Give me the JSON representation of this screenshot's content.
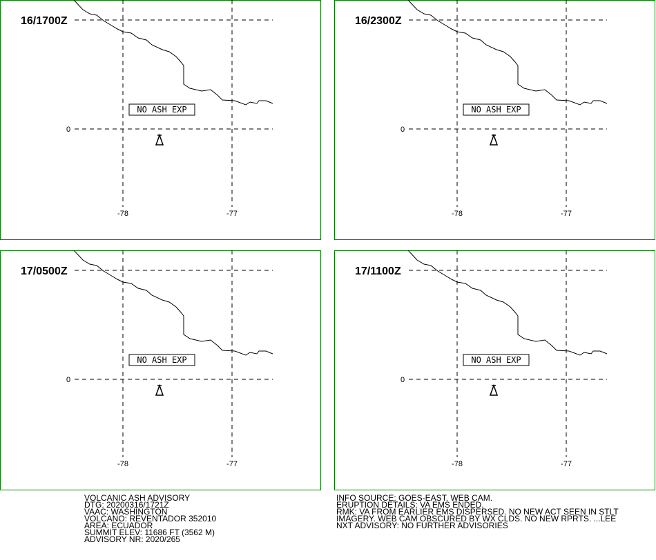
{
  "panels": [
    {
      "time": "16/1700Z",
      "status": "NO ASH EXP",
      "lat_label": "0",
      "lon_labels": [
        "-78",
        "-77"
      ]
    },
    {
      "time": "16/2300Z",
      "status": "NO ASH EXP",
      "lat_label": "0",
      "lon_labels": [
        "-78",
        "-77"
      ]
    },
    {
      "time": "17/0500Z",
      "status": "NO ASH EXP",
      "lat_label": "0",
      "lon_labels": [
        "-78",
        "-77"
      ]
    },
    {
      "time": "17/1100Z",
      "status": "NO ASH EXP",
      "lat_label": "0",
      "lon_labels": [
        "-78",
        "-77"
      ]
    }
  ],
  "advisory_left": [
    "VOLCANIC ASH ADVISORY",
    "DTG: 20200316/1721Z",
    "VAAC: WASHINGTON",
    "VOLCANO: REVENTADOR 352010",
    "AREA: ECUADOR",
    "SUMMIT ELEV: 11686 FT (3562 M)",
    "ADVISORY NR: 2020/265"
  ],
  "advisory_right": [
    "INFO SOURCE: GOES-EAST. WEB CAM.",
    "ERUPTION DETAILS: VA EMS ENDED.",
    "RMK: VA FROM EARLIER EMS DISPERSED. NO NEW ACT SEEN IN STLT",
    "IMAGERY. WEB CAM OBSCURED BY WX CLDS. NO NEW RPRTS. ...LEE",
    "NXT ADVISORY: NO FURTHER ADVISORIES"
  ]
}
